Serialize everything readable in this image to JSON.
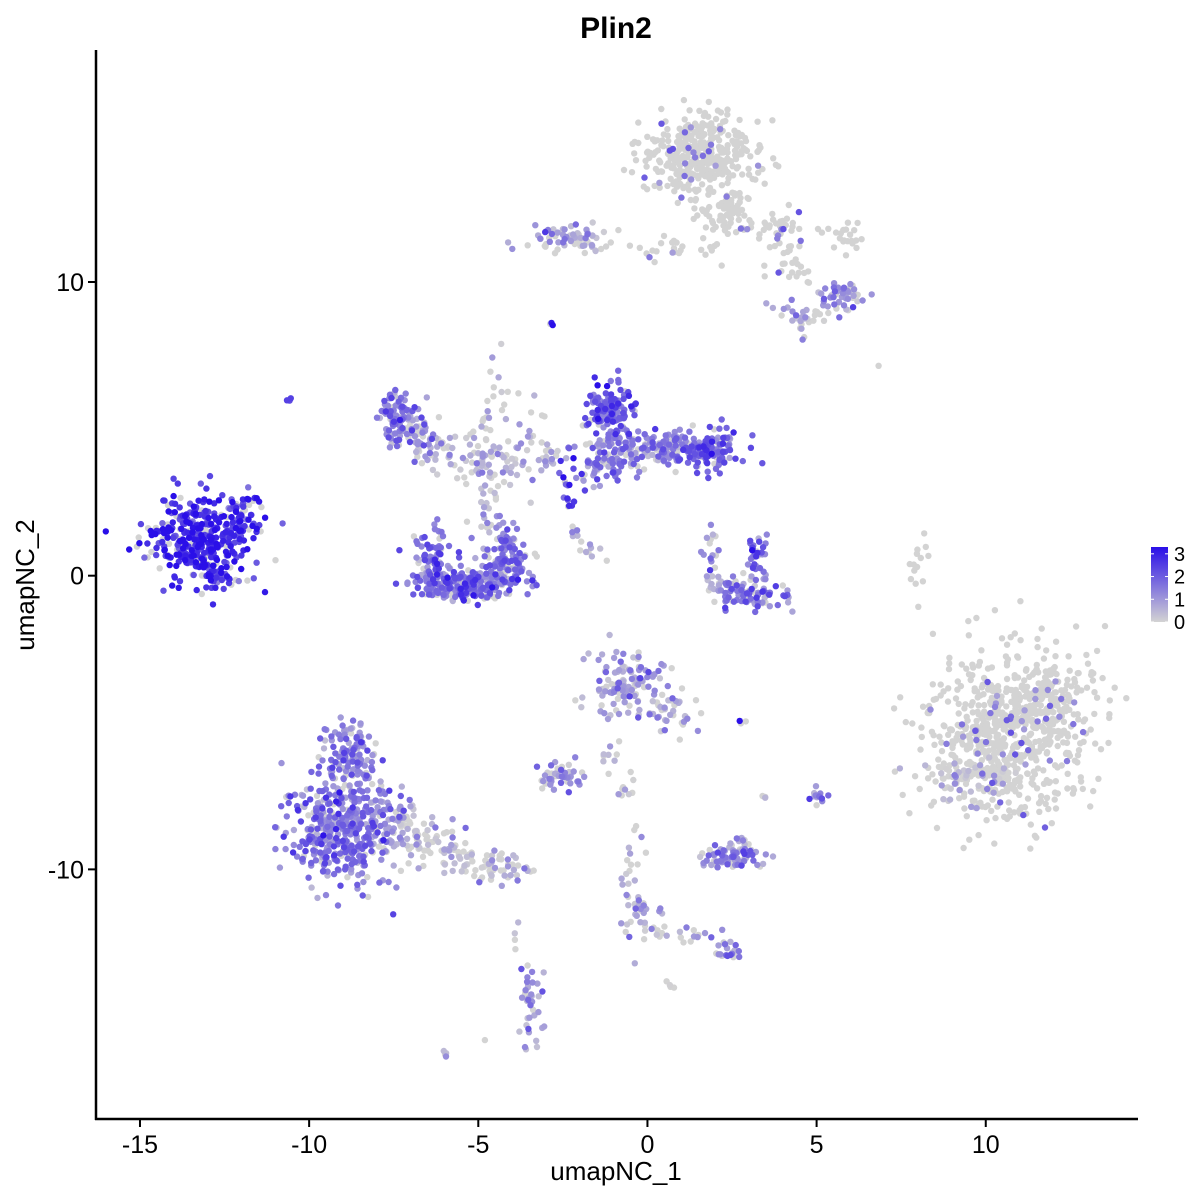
{
  "chart_data": {
    "type": "scatter",
    "title": "Plin2",
    "xlabel": "umapNC_1",
    "ylabel": "umapNC_2",
    "xlim": [
      -16.3,
      14.5
    ],
    "ylim": [
      -18.5,
      17.9
    ],
    "x_ticks": [
      {
        "value": -15,
        "label": "-15"
      },
      {
        "value": -10,
        "label": "-10"
      },
      {
        "value": -5,
        "label": "-5"
      },
      {
        "value": 0,
        "label": "0"
      },
      {
        "value": 5,
        "label": "5"
      },
      {
        "value": 10,
        "label": "10"
      }
    ],
    "y_ticks": [
      {
        "value": 10,
        "label": "10"
      },
      {
        "value": 0,
        "label": "0"
      },
      {
        "value": -10,
        "label": "-10"
      }
    ],
    "grid": false,
    "color_scale": {
      "low": "#d3d3d3",
      "high": "#2a0fe8",
      "min": 0,
      "max": 3.3,
      "ticks": [
        {
          "value": 0,
          "label": "0"
        },
        {
          "value": 1,
          "label": "1"
        },
        {
          "value": 2,
          "label": "2"
        },
        {
          "value": 3,
          "label": "3"
        }
      ],
      "legend_position": "right"
    },
    "clusters": [
      {
        "cx": -13.2,
        "cy": 1.2,
        "sx": 0.75,
        "sy": 0.75,
        "n": 360,
        "expr": 2.9
      },
      {
        "cx": -12.0,
        "cy": 1.8,
        "sx": 0.4,
        "sy": 0.6,
        "n": 40,
        "expr": 2.5
      },
      {
        "cx": -11.7,
        "cy": 2.6,
        "sx": 0.15,
        "sy": 0.2,
        "n": 8,
        "expr": 2.6
      },
      {
        "cx": -12.6,
        "cy": -0.1,
        "sx": 0.3,
        "sy": 0.15,
        "n": 22,
        "expr": 2.5
      },
      {
        "cx": -10.6,
        "cy": 6.0,
        "sx": 0.05,
        "sy": 0.05,
        "n": 3,
        "expr": 2.5
      },
      {
        "cx": -2.8,
        "cy": 8.6,
        "sx": 0.05,
        "sy": 0.05,
        "n": 3,
        "expr": 3.2
      },
      {
        "cx": 1.5,
        "cy": 14.3,
        "sx": 0.85,
        "sy": 0.65,
        "n": 380,
        "expr": 0.02
      },
      {
        "cx": 2.2,
        "cy": 12.5,
        "sx": 0.5,
        "sy": 0.4,
        "n": 60,
        "expr": 0.05
      },
      {
        "cx": -2.2,
        "cy": 11.5,
        "sx": 0.65,
        "sy": 0.3,
        "n": 70,
        "expr": 0.6
      },
      {
        "cx": 0.7,
        "cy": 11.1,
        "sx": 0.8,
        "sy": 0.2,
        "n": 25,
        "expr": 0.15
      },
      {
        "cx": 3.5,
        "cy": 11.8,
        "sx": 0.8,
        "sy": 0.3,
        "n": 50,
        "expr": 0.15
      },
      {
        "cx": 5.8,
        "cy": 11.6,
        "sx": 0.3,
        "sy": 0.4,
        "n": 20,
        "expr": 0.1
      },
      {
        "cx": 5.7,
        "cy": 9.5,
        "sx": 0.35,
        "sy": 0.25,
        "n": 50,
        "expr": 1.0
      },
      {
        "cx": 4.6,
        "cy": 8.8,
        "sx": 0.4,
        "sy": 0.3,
        "n": 30,
        "expr": 0.4
      },
      {
        "cx": 4.2,
        "cy": 10.5,
        "sx": 0.4,
        "sy": 0.3,
        "n": 20,
        "expr": 0.1
      },
      {
        "cx": -7.3,
        "cy": 5.4,
        "sx": 0.3,
        "sy": 0.45,
        "n": 110,
        "expr": 1.3
      },
      {
        "cx": -6.6,
        "cy": 4.6,
        "sx": 0.35,
        "sy": 0.3,
        "n": 40,
        "expr": 0.7
      },
      {
        "cx": -5.5,
        "cy": 4.3,
        "sx": 0.6,
        "sy": 0.3,
        "n": 40,
        "expr": 0.5
      },
      {
        "cx": -4.7,
        "cy": 3.7,
        "sx": 0.5,
        "sy": 0.25,
        "n": 40,
        "expr": 0.3
      },
      {
        "cx": -4.4,
        "cy": 6.0,
        "sx": 0.25,
        "sy": 1.0,
        "n": 20,
        "expr": 0.3
      },
      {
        "cx": -3.7,
        "cy": 4.5,
        "sx": 0.4,
        "sy": 0.6,
        "n": 25,
        "expr": 0.2
      },
      {
        "cx": -2.9,
        "cy": 3.9,
        "sx": 0.3,
        "sy": 0.3,
        "n": 12,
        "expr": 0.4
      },
      {
        "cx": -1.1,
        "cy": 5.6,
        "sx": 0.35,
        "sy": 0.45,
        "n": 140,
        "expr": 1.8
      },
      {
        "cx": -1.2,
        "cy": 4.0,
        "sx": 0.5,
        "sy": 0.45,
        "n": 100,
        "expr": 1.5
      },
      {
        "cx": 0.7,
        "cy": 4.3,
        "sx": 0.7,
        "sy": 0.3,
        "n": 120,
        "expr": 1.4
      },
      {
        "cx": 1.9,
        "cy": 4.3,
        "sx": 0.4,
        "sy": 0.35,
        "n": 100,
        "expr": 2.0
      },
      {
        "cx": -2.3,
        "cy": 3.2,
        "sx": 0.2,
        "sy": 0.4,
        "n": 12,
        "expr": 2.5
      },
      {
        "cx": -2.4,
        "cy": 2.5,
        "sx": 0.15,
        "sy": 0.1,
        "n": 6,
        "expr": 3.0
      },
      {
        "cx": -6.3,
        "cy": 0.6,
        "sx": 0.3,
        "sy": 0.55,
        "n": 80,
        "expr": 1.6
      },
      {
        "cx": -5.3,
        "cy": -0.3,
        "sx": 0.75,
        "sy": 0.28,
        "n": 220,
        "expr": 1.7
      },
      {
        "cx": -4.2,
        "cy": 0.6,
        "sx": 0.35,
        "sy": 0.45,
        "n": 110,
        "expr": 1.6
      },
      {
        "cx": -4.6,
        "cy": 1.8,
        "sx": 0.3,
        "sy": 0.35,
        "n": 20,
        "expr": 0.6
      },
      {
        "cx": -4.7,
        "cy": 2.8,
        "sx": 0.2,
        "sy": 0.3,
        "n": 10,
        "expr": 0.3
      },
      {
        "cx": -2.2,
        "cy": 1.4,
        "sx": 0.2,
        "sy": 0.15,
        "n": 6,
        "expr": 0.3
      },
      {
        "cx": -1.4,
        "cy": 0.9,
        "sx": 0.3,
        "sy": 0.15,
        "n": 8,
        "expr": 0.8
      },
      {
        "cx": 3.2,
        "cy": 0.7,
        "sx": 0.2,
        "sy": 0.4,
        "n": 40,
        "expr": 1.7
      },
      {
        "cx": 3.0,
        "cy": -0.7,
        "sx": 0.55,
        "sy": 0.25,
        "n": 70,
        "expr": 1.5
      },
      {
        "cx": 2.3,
        "cy": -0.3,
        "sx": 0.4,
        "sy": 0.2,
        "n": 25,
        "expr": 0.8
      },
      {
        "cx": 1.9,
        "cy": 0.8,
        "sx": 0.15,
        "sy": 0.4,
        "n": 15,
        "expr": 1.2
      },
      {
        "cx": 8.0,
        "cy": 0.3,
        "sx": 0.12,
        "sy": 0.5,
        "n": 14,
        "expr": 0.05
      },
      {
        "cx": 6.8,
        "cy": 7.1,
        "sx": 0.05,
        "sy": 0.05,
        "n": 1,
        "expr": 0.0
      },
      {
        "cx": 10.7,
        "cy": -5.5,
        "sx": 1.2,
        "sy": 1.4,
        "n": 700,
        "expr": 0.12
      },
      {
        "cx": 9.6,
        "cy": -6.8,
        "sx": 0.6,
        "sy": 0.5,
        "n": 80,
        "expr": 0.2
      },
      {
        "cx": 11.9,
        "cy": -4.0,
        "sx": 0.6,
        "sy": 0.6,
        "n": 90,
        "expr": 0.1
      },
      {
        "cx": -0.7,
        "cy": -3.7,
        "sx": 0.55,
        "sy": 0.6,
        "n": 110,
        "expr": 0.9
      },
      {
        "cx": 0.7,
        "cy": -4.7,
        "sx": 0.45,
        "sy": 0.4,
        "n": 35,
        "expr": 0.6
      },
      {
        "cx": 2.8,
        "cy": -5.0,
        "sx": 0.06,
        "sy": 0.05,
        "n": 3,
        "expr": 3.0
      },
      {
        "cx": -1.2,
        "cy": -6.1,
        "sx": 0.3,
        "sy": 0.35,
        "n": 10,
        "expr": 0.3
      },
      {
        "cx": -2.5,
        "cy": -6.9,
        "sx": 0.35,
        "sy": 0.25,
        "n": 45,
        "expr": 1.2
      },
      {
        "cx": -0.9,
        "cy": -7.3,
        "sx": 0.3,
        "sy": 0.15,
        "n": 8,
        "expr": 0.2
      },
      {
        "cx": 3.4,
        "cy": -7.6,
        "sx": 0.08,
        "sy": 0.08,
        "n": 3,
        "expr": 0.2
      },
      {
        "cx": 5.0,
        "cy": -7.4,
        "sx": 0.15,
        "sy": 0.2,
        "n": 12,
        "expr": 1.5
      },
      {
        "cx": -9.0,
        "cy": -8.6,
        "sx": 0.75,
        "sy": 0.9,
        "n": 450,
        "expr": 1.4
      },
      {
        "cx": -8.8,
        "cy": -6.0,
        "sx": 0.4,
        "sy": 0.6,
        "n": 110,
        "expr": 1.4
      },
      {
        "cx": -7.5,
        "cy": -8.4,
        "sx": 0.4,
        "sy": 0.6,
        "n": 60,
        "expr": 0.6
      },
      {
        "cx": -6.1,
        "cy": -9.2,
        "sx": 0.55,
        "sy": 0.35,
        "n": 60,
        "expr": 0.2
      },
      {
        "cx": -4.8,
        "cy": -9.9,
        "sx": 0.5,
        "sy": 0.25,
        "n": 45,
        "expr": 0.3
      },
      {
        "cx": -3.9,
        "cy": -10.3,
        "sx": 0.3,
        "sy": 0.2,
        "n": 12,
        "expr": 0.3
      },
      {
        "cx": 2.4,
        "cy": -9.6,
        "sx": 0.45,
        "sy": 0.2,
        "n": 70,
        "expr": 1.3
      },
      {
        "cx": 2.7,
        "cy": -9.2,
        "sx": 0.25,
        "sy": 0.2,
        "n": 18,
        "expr": 0.3
      },
      {
        "cx": -0.5,
        "cy": -10.6,
        "sx": 0.25,
        "sy": 1.0,
        "n": 30,
        "expr": 0.6
      },
      {
        "cx": -0.1,
        "cy": -11.7,
        "sx": 0.3,
        "sy": 0.35,
        "n": 25,
        "expr": 0.8
      },
      {
        "cx": 1.3,
        "cy": -12.3,
        "sx": 0.5,
        "sy": 0.25,
        "n": 15,
        "expr": 0.3
      },
      {
        "cx": 2.4,
        "cy": -12.7,
        "sx": 0.25,
        "sy": 0.2,
        "n": 20,
        "expr": 1.2
      },
      {
        "cx": -3.5,
        "cy": -14.6,
        "sx": 0.2,
        "sy": 0.65,
        "n": 40,
        "expr": 0.8
      },
      {
        "cx": -3.9,
        "cy": -12.5,
        "sx": 0.1,
        "sy": 0.4,
        "n": 4,
        "expr": 0.2
      },
      {
        "cx": -6.0,
        "cy": -16.3,
        "sx": 0.15,
        "sy": 0.08,
        "n": 4,
        "expr": 0.5
      },
      {
        "cx": 0.6,
        "cy": -13.9,
        "sx": 0.1,
        "sy": 0.08,
        "n": 4,
        "expr": 0.3
      },
      {
        "cx": -4.9,
        "cy": -15.8,
        "sx": 0.05,
        "sy": 0.05,
        "n": 1,
        "expr": 0.0
      }
    ]
  }
}
